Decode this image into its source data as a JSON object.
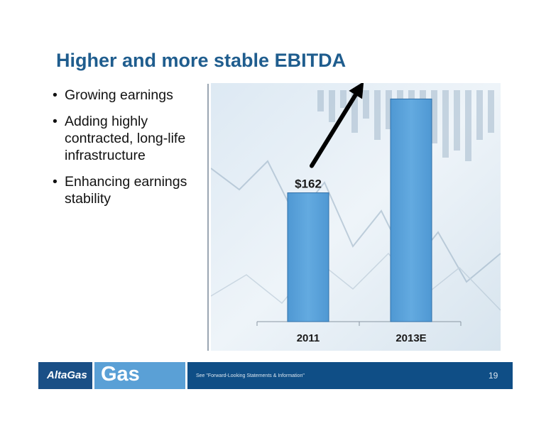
{
  "slide": {
    "title": "Higher and more stable EBITDA",
    "bullets": [
      {
        "text": "Growing earnings"
      },
      {
        "text": "Adding highly contracted, long-life infrastructure"
      },
      {
        "text": "Enhancing earnings stability"
      }
    ]
  },
  "chart_data": {
    "type": "bar",
    "categories": [
      "2011",
      "2013E"
    ],
    "values": [
      162,
      280
    ],
    "data_labels": [
      "$162",
      ""
    ],
    "ylim": [
      0,
      300
    ],
    "bar_color": "#5ba3db",
    "annotation": "upward-arrow-from-2011-to-2013E"
  },
  "footer": {
    "logo_text": "AltaGas",
    "brand_text": "Gas",
    "disclaimer": "See \"Forward-Looking Statements & Information\"",
    "page_number": "19",
    "colors": {
      "dark_blue": "#1a4f86",
      "light_blue": "#5aa0d6"
    }
  }
}
